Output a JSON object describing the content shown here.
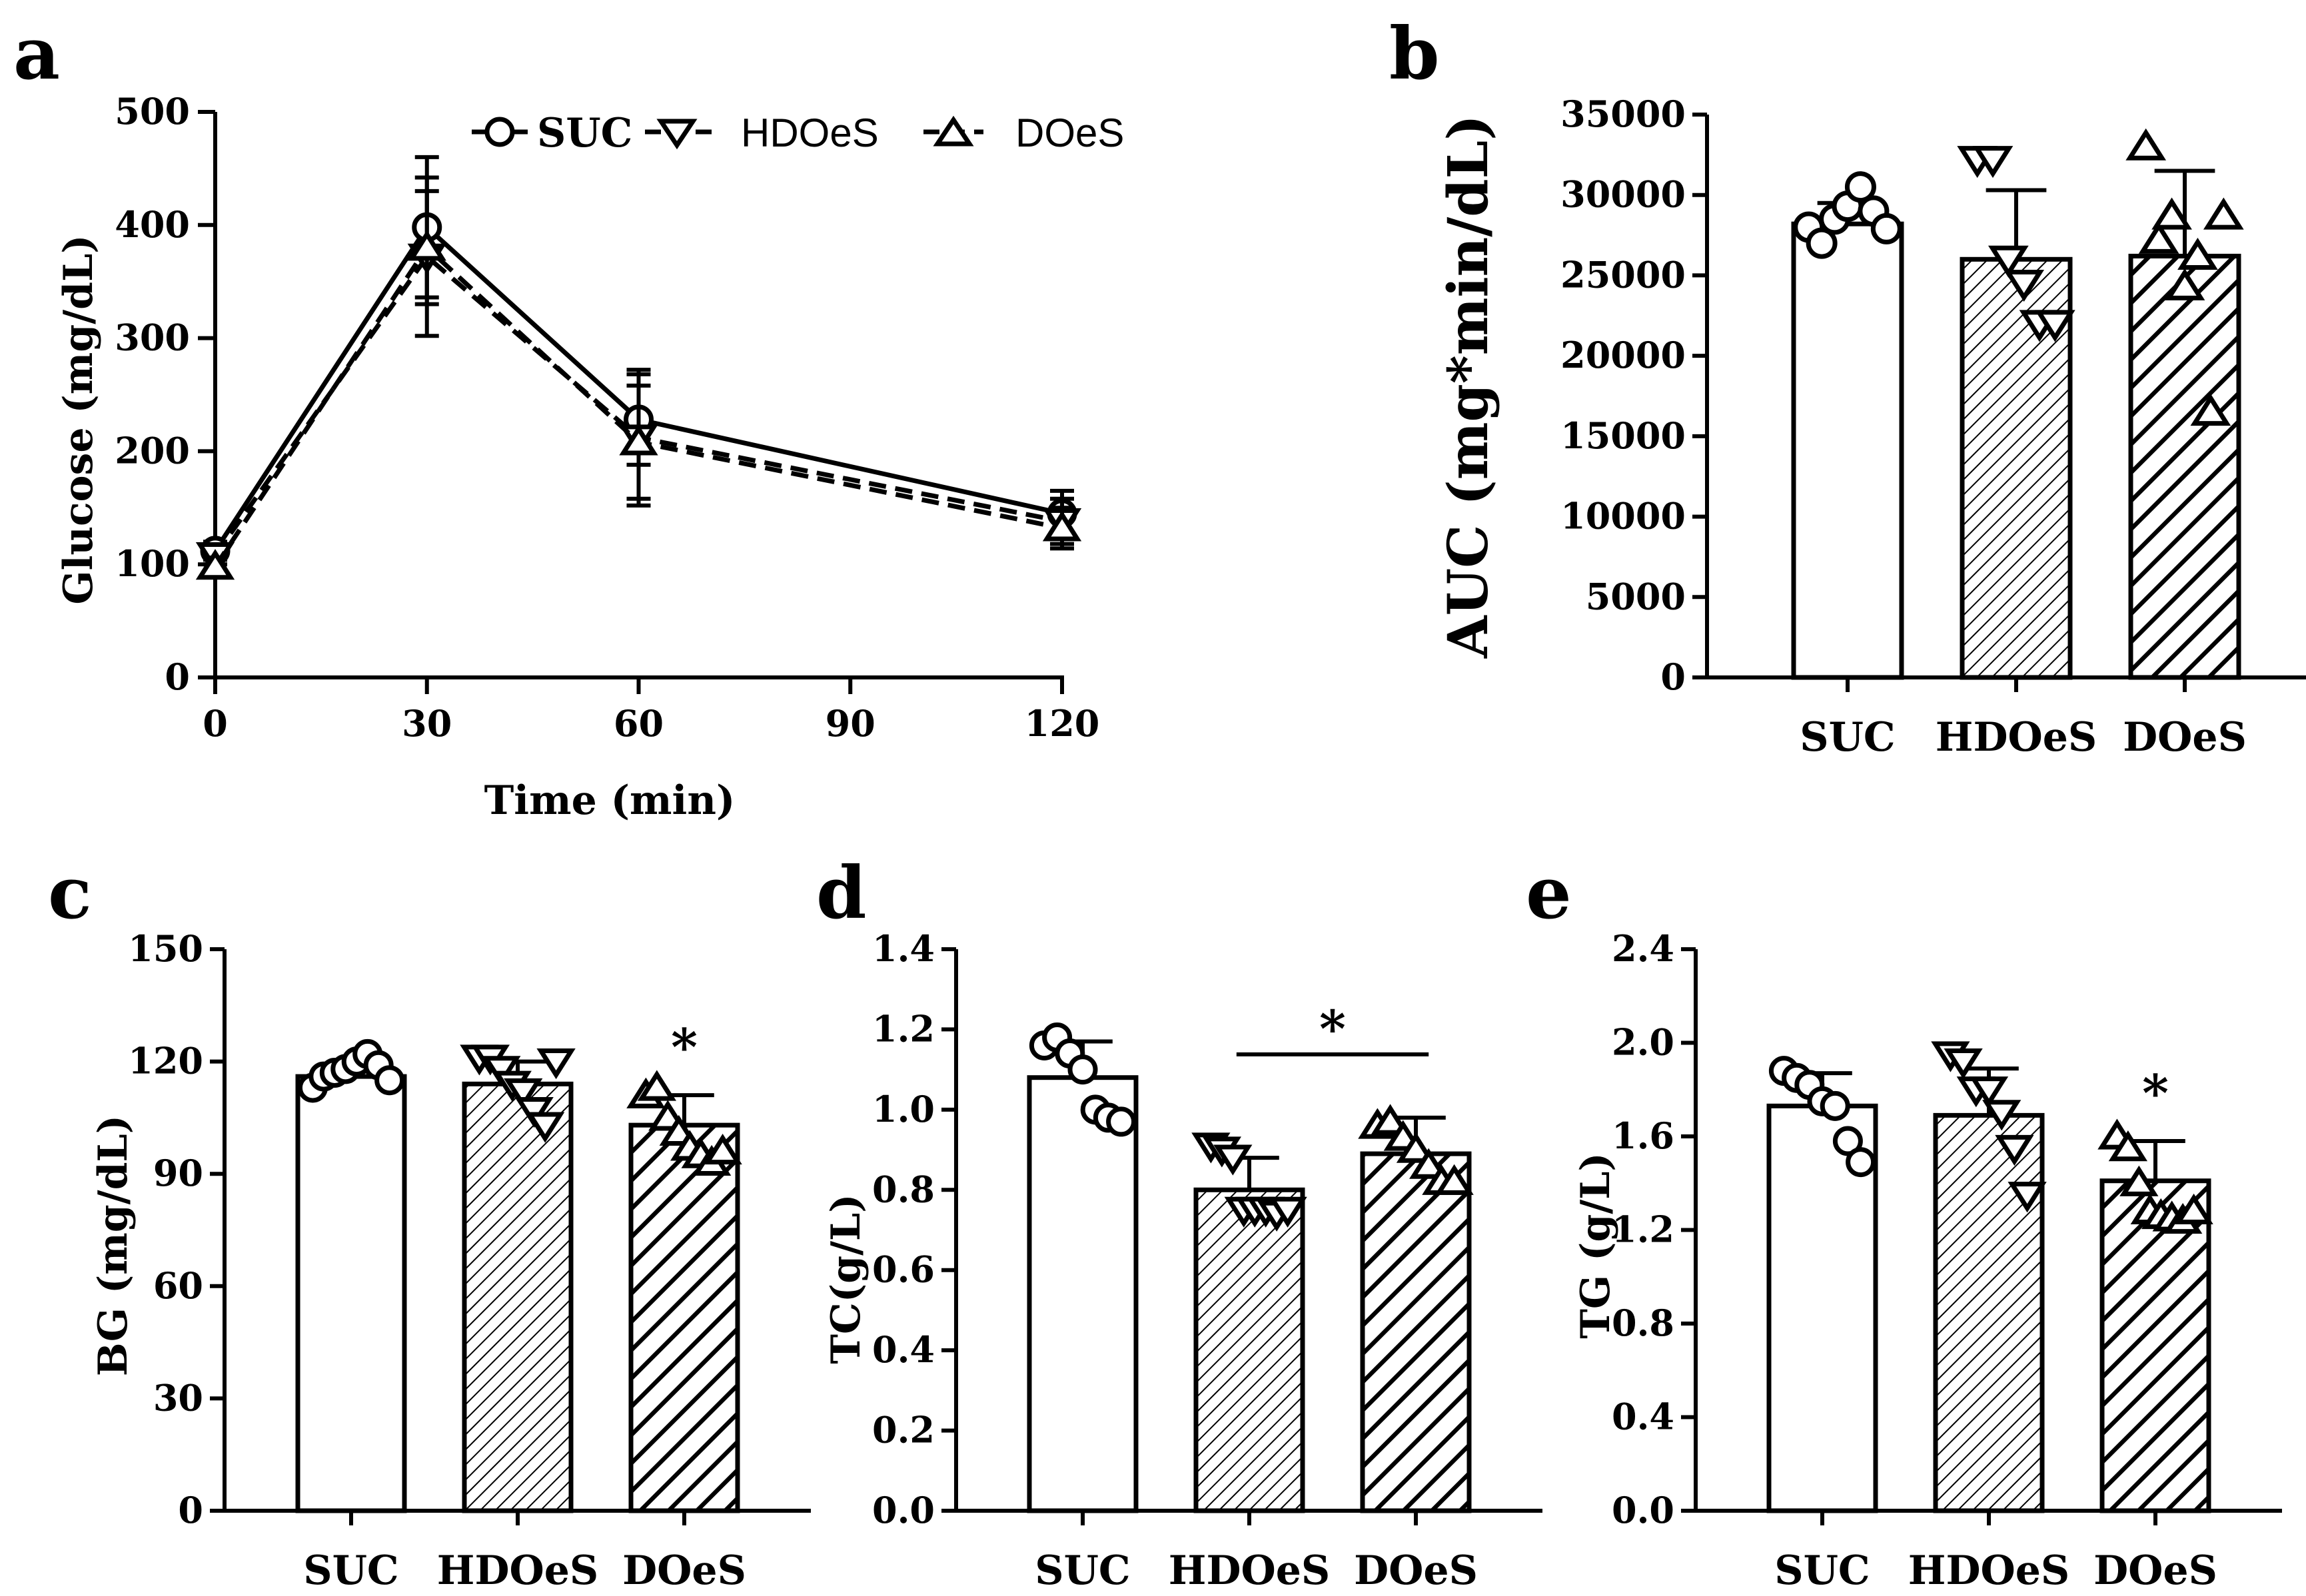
{
  "chart_data": [
    {
      "id": "a",
      "panel_label": "a",
      "type": "line",
      "xlabel": "Time (min)",
      "ylabel": "Glucose (mg/dL)",
      "x": [
        0,
        30,
        60,
        120
      ],
      "x_ticks": [
        "0",
        "30",
        "60",
        "90",
        "120"
      ],
      "xlim": [
        0,
        120
      ],
      "ylim": [
        0,
        500
      ],
      "y_ticks": [
        "0",
        "100",
        "200",
        "300",
        "400",
        "500"
      ],
      "legend": [
        "SUC",
        "HDOeS",
        "DOeS"
      ],
      "series": [
        {
          "name": "SUC",
          "marker": "circle",
          "line": "solid",
          "values": [
            112,
            398,
            228,
            145
          ],
          "errors": [
            8,
            62,
            40,
            20
          ]
        },
        {
          "name": "HDOeS",
          "marker": "triangle-down",
          "line": "dashed",
          "values": [
            108,
            372,
            212,
            138
          ],
          "errors": [
            8,
            70,
            60,
            20
          ]
        },
        {
          "name": "DOeS",
          "marker": "triangle-up",
          "line": "dashed",
          "values": [
            98,
            380,
            208,
            132
          ],
          "errors": [
            8,
            50,
            50,
            18
          ]
        }
      ]
    },
    {
      "id": "b",
      "panel_label": "b",
      "type": "bar",
      "ylabel": "AUC (mg*min/dL)",
      "categories": [
        "SUC",
        "HDOeS",
        "DOeS"
      ],
      "patterns": [
        "none",
        "hatch-thin",
        "hatch-thick"
      ],
      "markers": [
        "circle",
        "triangle-down",
        "triangle-up"
      ],
      "values": [
        28200,
        26000,
        26200
      ],
      "errors": [
        1300,
        4300,
        5300
      ],
      "points": [
        [
          28000,
          27000,
          28500,
          29300,
          30500,
          29000,
          27900
        ],
        [
          32200,
          32200,
          26000,
          24500,
          22000,
          22000
        ],
        [
          33000,
          27200,
          28700,
          24300,
          26200,
          16500,
          28700
        ]
      ],
      "ylim": [
        0,
        35000
      ],
      "y_ticks": [
        "0",
        "5000",
        "10000",
        "15000",
        "20000",
        "25000",
        "30000",
        "35000"
      ],
      "significance": []
    },
    {
      "id": "c",
      "panel_label": "c",
      "type": "bar",
      "ylabel": "BG (mg/dL)",
      "categories": [
        "SUC",
        "HDOeS",
        "DOeS"
      ],
      "patterns": [
        "none",
        "hatch-thin",
        "hatch-thick"
      ],
      "markers": [
        "circle",
        "triangle-down",
        "triangle-up"
      ],
      "values": [
        116,
        114,
        103
      ],
      "errors": [
        3,
        6,
        8
      ],
      "points": [
        [
          113,
          116,
          117,
          118,
          120,
          122,
          119,
          115
        ],
        [
          121,
          121,
          118,
          114,
          112,
          107,
          103,
          120
        ],
        [
          111,
          113,
          105,
          101,
          97,
          95,
          93,
          96
        ]
      ],
      "ylim": [
        0,
        150
      ],
      "y_ticks": [
        "0",
        "30",
        "60",
        "90",
        "120",
        "150"
      ],
      "significance": [
        {
          "text": "*",
          "category": "DOeS"
        }
      ]
    },
    {
      "id": "d",
      "panel_label": "d",
      "type": "bar",
      "ylabel": "TC(g/L)",
      "categories": [
        "SUC",
        "HDOeS",
        "DOeS"
      ],
      "patterns": [
        "none",
        "hatch-thin",
        "hatch-thick"
      ],
      "markers": [
        "circle",
        "triangle-down",
        "triangle-up"
      ],
      "values": [
        1.08,
        0.8,
        0.89
      ],
      "errors": [
        0.09,
        0.08,
        0.09
      ],
      "points": [
        [
          1.16,
          1.18,
          1.14,
          1.1,
          1.0,
          0.98,
          0.97
        ],
        [
          0.91,
          0.9,
          0.88,
          0.75,
          0.75,
          0.75,
          0.74,
          0.75
        ],
        [
          0.96,
          0.97,
          0.93,
          0.9,
          0.86,
          0.82,
          0.82
        ]
      ],
      "ylim": [
        0,
        1.4
      ],
      "y_ticks": [
        "0.0",
        "0.2",
        "0.4",
        "0.6",
        "0.8",
        "1.0",
        "1.2",
        "1.4"
      ],
      "significance": [
        {
          "text": "*",
          "bracket": [
            "HDOeS",
            "DOeS"
          ]
        }
      ]
    },
    {
      "id": "e",
      "panel_label": "e",
      "type": "bar",
      "ylabel": "TG (g/L)",
      "categories": [
        "SUC",
        "HDOeS",
        "DOeS"
      ],
      "patterns": [
        "none",
        "hatch-thin",
        "hatch-thick"
      ],
      "markers": [
        "circle",
        "triangle-down",
        "triangle-up"
      ],
      "values": [
        1.73,
        1.69,
        1.41
      ],
      "errors": [
        0.14,
        0.2,
        0.17
      ],
      "points": [
        [
          1.88,
          1.85,
          1.82,
          1.75,
          1.73,
          1.58,
          1.49
        ],
        [
          1.95,
          1.92,
          1.8,
          1.8,
          1.7,
          1.55,
          1.35
        ],
        [
          1.6,
          1.55,
          1.4,
          1.28,
          1.26,
          1.25,
          1.24,
          1.28
        ]
      ],
      "ylim": [
        0,
        2.4
      ],
      "y_ticks": [
        "0.0",
        "0.4",
        "0.8",
        "1.2",
        "1.6",
        "2.0",
        "2.4"
      ],
      "significance": [
        {
          "text": "*",
          "category": "DOeS"
        }
      ]
    }
  ]
}
